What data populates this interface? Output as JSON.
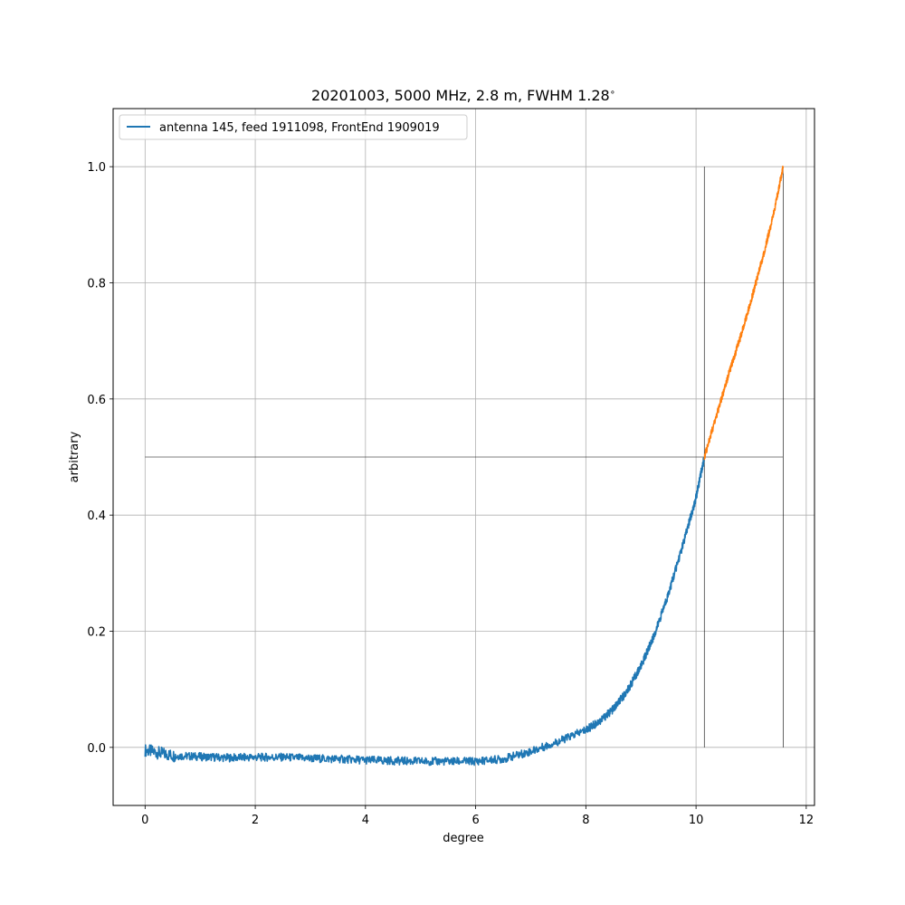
{
  "chart_data": {
    "type": "line",
    "title": "20201003, 5000 MHz, 2.8 m, FWHM 1.28$^\\circ$",
    "title_display": "20201003, 5000 MHz, 2.8 m, FWHM 1.28",
    "title_superscript": "∘",
    "xlabel": "degree",
    "ylabel": "arbitrary",
    "xlim": [
      -0.58,
      12.15
    ],
    "ylim": [
      -0.1,
      1.1
    ],
    "xticks": [
      0,
      2,
      4,
      6,
      8,
      10,
      12
    ],
    "yticks": [
      0.0,
      0.2,
      0.4,
      0.6,
      0.8,
      1.0
    ],
    "xtick_labels": [
      "0",
      "2",
      "4",
      "6",
      "8",
      "10",
      "12"
    ],
    "ytick_labels": [
      "0.0",
      "0.2",
      "0.4",
      "0.6",
      "0.8",
      "1.0"
    ],
    "grid": true,
    "legend_placement": "upper-left",
    "series": [
      {
        "name": "antenna 145, feed 1911098, FrontEnd 1909019",
        "color": "#1f77b4",
        "x": [
          0.0,
          0.5,
          1.0,
          1.5,
          2.0,
          2.5,
          3.0,
          3.5,
          4.0,
          4.5,
          5.0,
          5.5,
          6.0,
          6.5,
          7.0,
          7.5,
          8.0,
          8.25,
          8.5,
          8.75,
          9.0,
          9.25,
          9.5,
          9.75,
          10.0,
          10.15
        ],
        "y": [
          -0.005,
          -0.014,
          -0.016,
          -0.018,
          -0.017,
          -0.017,
          -0.019,
          -0.02,
          -0.022,
          -0.023,
          -0.024,
          -0.024,
          -0.024,
          -0.02,
          -0.007,
          0.01,
          0.03,
          0.045,
          0.066,
          0.097,
          0.14,
          0.195,
          0.265,
          0.345,
          0.43,
          0.5
        ]
      },
      {
        "name": "",
        "color": "#ff7f0e",
        "x": [
          10.15,
          10.4,
          10.6,
          10.8,
          11.0,
          11.2,
          11.4,
          11.58
        ],
        "y": [
          0.5,
          0.58,
          0.645,
          0.705,
          0.77,
          0.84,
          0.915,
          1.0
        ]
      }
    ],
    "reference_lines": {
      "color": "#000000",
      "horizontal": {
        "y": 0.5,
        "x_from": 0.0,
        "x_to": 11.58
      },
      "verticals": [
        {
          "x": 10.15,
          "y_from": 0.0,
          "y_to": 1.0
        },
        {
          "x": 11.58,
          "y_from": 0.0,
          "y_to": 1.0
        }
      ]
    }
  }
}
